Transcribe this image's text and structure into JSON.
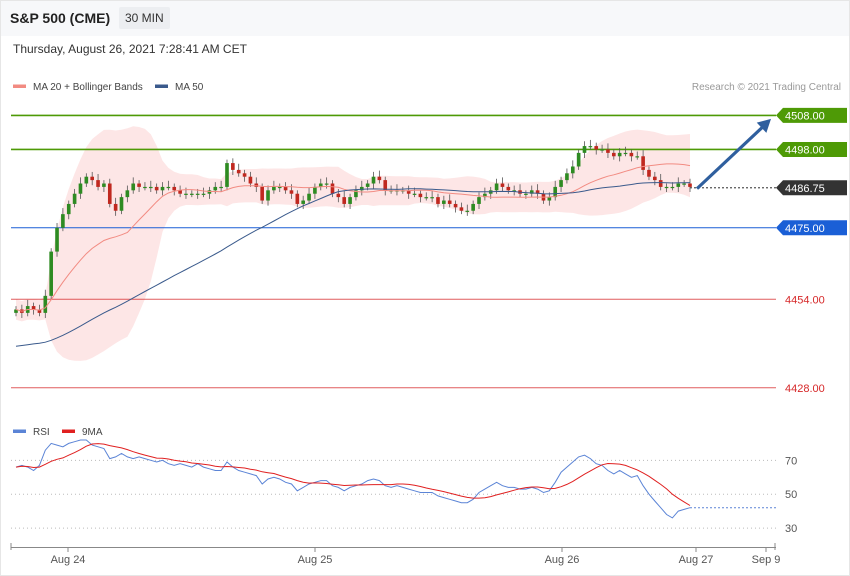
{
  "header": {
    "symbol": "S&P 500 (CME)",
    "interval": "30 MIN"
  },
  "datetime": "Thursday, August 26, 2021 7:28:41 AM CET",
  "legend": [
    {
      "label": "MA 20 + Bollinger Bands",
      "color": "#f28b82"
    },
    {
      "label": "MA 50",
      "color": "#3a5a8c"
    }
  ],
  "credit": "Research © 2021 Trading Central",
  "chart_data": [
    {
      "type": "candlestick",
      "price_range": [
        4420,
        4514
      ],
      "levels": [
        {
          "value": 4508.0,
          "label": "4508.00",
          "kind": "resistance",
          "color": "#4e9a06"
        },
        {
          "value": 4498.0,
          "label": "4498.00",
          "kind": "resistance",
          "color": "#4e9a06"
        },
        {
          "value": 4486.75,
          "label": "4486.75",
          "kind": "last",
          "color": "#333333"
        },
        {
          "value": 4475.0,
          "label": "4475.00",
          "kind": "pivot",
          "color": "#1a5fd6"
        },
        {
          "value": 4454.0,
          "label": "4454.00",
          "kind": "support",
          "color": "#d62728"
        },
        {
          "value": 4428.0,
          "label": "4428.00",
          "kind": "support",
          "color": "#d62728"
        }
      ],
      "projection": {
        "from": 4486.5,
        "to": 4507.0
      },
      "close": [
        4451,
        4450,
        4452,
        4451,
        4450,
        4455,
        4468,
        4475,
        4479,
        4482,
        4485,
        4488,
        4490,
        4489,
        4487,
        4488,
        4482,
        4480,
        4484,
        4486,
        4488,
        4487,
        4487,
        4487,
        4486,
        4487,
        4487,
        4486,
        4485,
        4485,
        4485,
        4485,
        4485,
        4486,
        4487,
        4487,
        4494,
        4492,
        4491,
        4490,
        4488,
        4487,
        4483,
        4486,
        4487,
        4487,
        4486,
        4485,
        4482,
        4483,
        4485,
        4487,
        4488,
        4488,
        4485,
        4484,
        4482,
        4484,
        4486,
        4487,
        4488,
        4490,
        4489,
        4486,
        4486,
        4486,
        4486,
        4485,
        4485,
        4484,
        4484,
        4484,
        4482,
        4483,
        4482,
        4481,
        4480,
        4480,
        4482,
        4484,
        4485,
        4486,
        4488,
        4487,
        4486,
        4486,
        4485,
        4485,
        4486,
        4485,
        4483,
        4484,
        4487,
        4489,
        4491,
        4493,
        4497,
        4499,
        4499,
        4498,
        4498,
        4497,
        4496,
        4497,
        4497,
        4496,
        4496,
        4492,
        4490,
        4489,
        4487,
        4487,
        4487,
        4488,
        4488,
        4487
      ]
    },
    {
      "type": "line",
      "title": "RSI",
      "series": [
        {
          "name": "RSI",
          "color": "#5b84d6"
        },
        {
          "name": "9MA",
          "color": "#e02020"
        }
      ],
      "yticks": [
        70,
        50,
        30
      ],
      "ylim": [
        20,
        82
      ],
      "rsi": [
        66,
        67,
        66,
        64,
        67,
        76,
        80,
        79,
        78,
        80,
        81,
        82,
        82,
        79,
        78,
        77,
        71,
        72,
        74,
        72,
        71,
        72,
        71,
        70,
        69,
        70,
        68,
        67,
        68,
        67,
        66,
        68,
        66,
        65,
        64,
        64,
        69,
        66,
        64,
        63,
        62,
        61,
        56,
        59,
        60,
        59,
        57,
        56,
        52,
        54,
        56,
        57,
        58,
        58,
        55,
        54,
        52,
        54,
        55,
        56,
        58,
        59,
        58,
        55,
        54,
        55,
        54,
        53,
        52,
        51,
        51,
        51,
        49,
        48,
        47,
        46,
        45,
        45,
        47,
        51,
        53,
        55,
        57,
        55,
        54,
        54,
        53,
        53,
        54,
        53,
        51,
        52,
        57,
        63,
        66,
        69,
        72,
        73,
        71,
        68,
        67,
        64,
        62,
        64,
        62,
        60,
        61,
        55,
        50,
        46,
        42,
        38,
        36,
        40,
        41,
        42
      ]
    }
  ],
  "xaxis": {
    "labels": [
      "Aug 24",
      "Aug 25",
      "Aug 26",
      "Aug 27",
      "Sep 9"
    ]
  }
}
